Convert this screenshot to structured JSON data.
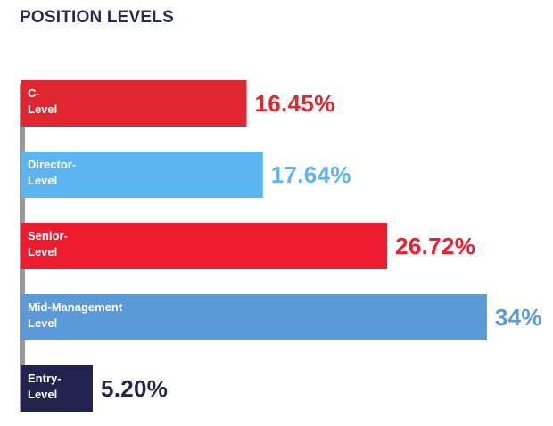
{
  "chart_data": {
    "type": "bar",
    "orientation": "horizontal",
    "title": "POSITION LEVELS",
    "categories": [
      [
        "C-",
        "Level"
      ],
      [
        "Director-",
        "Level"
      ],
      [
        "Senior-",
        "Level"
      ],
      [
        "Mid-Management",
        "Level"
      ],
      [
        "Entry-",
        "Level"
      ]
    ],
    "values": [
      16.45,
      17.64,
      26.72,
      34,
      5.2
    ],
    "value_labels": [
      "16.45%",
      "17.64%",
      "26.72%",
      "34%",
      "5.20%"
    ],
    "unit": "%",
    "colors": [
      "#e02631",
      "#5cb4f1",
      "#ef1c2f",
      "#5a9ad8",
      "#22244f"
    ],
    "axis_color": "#9a9a9a",
    "grid": false,
    "legend": "none"
  }
}
